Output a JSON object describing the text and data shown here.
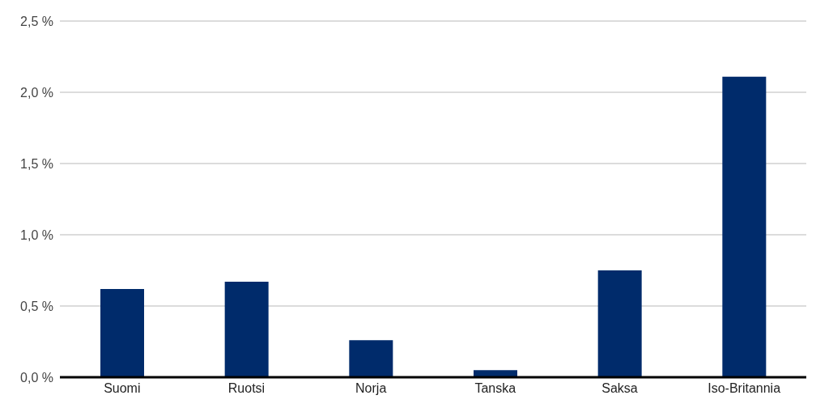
{
  "chart_data": {
    "type": "bar",
    "categories": [
      "Suomi",
      "Ruotsi",
      "Norja",
      "Tanska",
      "Saksa",
      "Iso-Britannia"
    ],
    "values": [
      0.62,
      0.67,
      0.26,
      0.05,
      0.75,
      2.11
    ],
    "color": "#002b6b",
    "ylim": [
      0,
      2.5
    ],
    "yticks": [
      {
        "value": 0,
        "label": "0,0 %"
      },
      {
        "value": 0.5,
        "label": "0,5 %"
      },
      {
        "value": 1,
        "label": "1,0 %"
      },
      {
        "value": 1.5,
        "label": "1,5 %"
      },
      {
        "value": 2,
        "label": "2,0 %"
      },
      {
        "value": 2.5,
        "label": "2,5 %"
      }
    ],
    "grid": "y"
  }
}
